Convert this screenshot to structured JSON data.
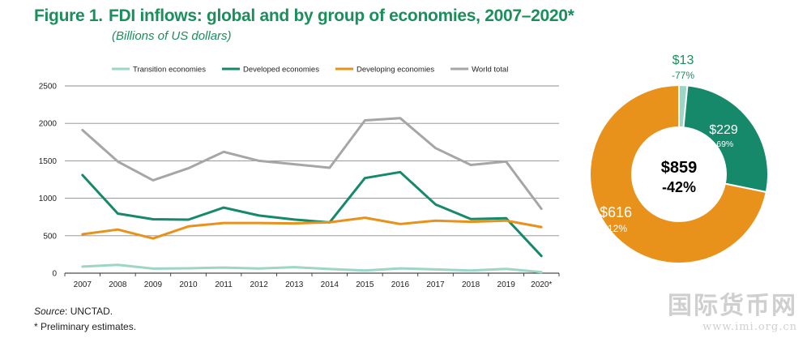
{
  "title": {
    "figure": "Figure 1.",
    "text": "FDI inflows: global and by group of economies, 2007–2020*",
    "subtitle": "(Billions of US dollars)"
  },
  "source": {
    "label": "Source",
    "text": ": UNCTAD."
  },
  "note": "* Preliminary estimates.",
  "watermark": {
    "line1": "国际货币网",
    "line2": "www.imi.org.cn"
  },
  "colors": {
    "transition": "#9bd6c6",
    "developed": "#15896a",
    "developing": "#e8921c",
    "world": "#a6a6a6",
    "title": "#1a8f5c"
  },
  "chart_data": [
    {
      "type": "line",
      "xlabel": "",
      "ylabel": "",
      "categories": [
        "2007",
        "2008",
        "2009",
        "2010",
        "2011",
        "2012",
        "2013",
        "2014",
        "2015",
        "2016",
        "2017",
        "2018",
        "2019",
        "2020*"
      ],
      "ylim": [
        0,
        2500
      ],
      "yticks": [
        "0",
        "500",
        "1000",
        "1500",
        "2000",
        "2500"
      ],
      "grid": true,
      "legend_position": "top",
      "series": [
        {
          "name": "Transition economies",
          "color": "#9bd6c6",
          "values": [
            88,
            112,
            61,
            65,
            75,
            63,
            80,
            55,
            36,
            64,
            50,
            35,
            57,
            13
          ]
        },
        {
          "name": "Developed economies",
          "color": "#15896a",
          "values": [
            1310,
            795,
            720,
            714,
            876,
            770,
            715,
            678,
            1270,
            1350,
            918,
            723,
            734,
            229
          ]
        },
        {
          "name": "Developing economies",
          "color": "#e8921c",
          "values": [
            519,
            582,
            463,
            625,
            670,
            670,
            664,
            680,
            740,
            656,
            701,
            686,
            701,
            616
          ]
        },
        {
          "name": "World total",
          "color": "#a6a6a6",
          "values": [
            1910,
            1490,
            1240,
            1400,
            1620,
            1500,
            1455,
            1407,
            2040,
            2070,
            1670,
            1445,
            1490,
            859
          ]
        }
      ]
    },
    {
      "type": "pie",
      "donut": true,
      "center_label": {
        "value": "$859",
        "change": "-42%"
      },
      "slices": [
        {
          "name": "Transition economies",
          "value": 13,
          "label": "$13",
          "change": "-77%",
          "color": "#9bd6c6"
        },
        {
          "name": "Developed economies",
          "value": 229,
          "label": "$229",
          "change": "-69%",
          "color": "#15896a"
        },
        {
          "name": "Developing economies",
          "value": 616,
          "label": "$616",
          "change": "-12%",
          "color": "#e8921c"
        }
      ]
    }
  ]
}
